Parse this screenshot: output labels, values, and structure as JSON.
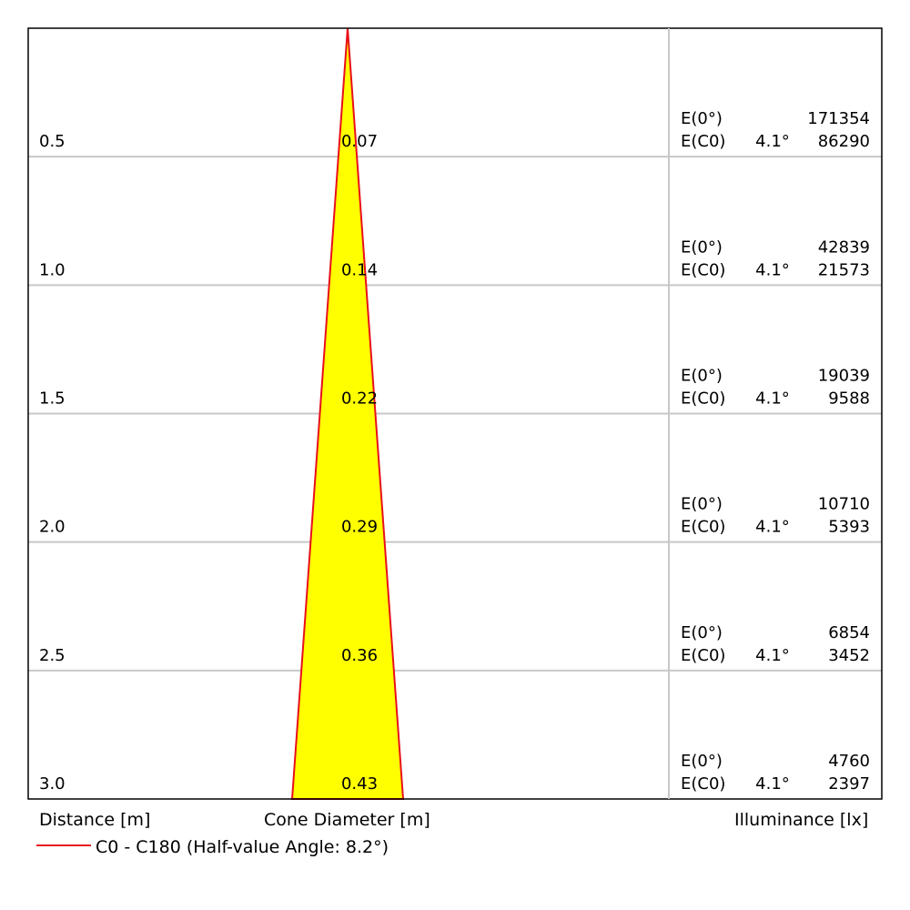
{
  "chart_data": {
    "type": "cone-diagram",
    "xlabel_distance": "Distance [m]",
    "xlabel_cone": "Cone Diameter [m]",
    "xlabel_illuminance": "Illuminance [lx]",
    "legend": "C0 - C180 (Half-value Angle: 8.2°)",
    "half_angle_label": "4.1°",
    "e0_label": "E(0°)",
    "ec0_label": "E(C0)",
    "colors": {
      "cone_fill": "#ffff00",
      "cone_edge": "#e8101a",
      "grid": "#c8c8c8",
      "frame": "#000000"
    },
    "rows": [
      {
        "distance": "0.5",
        "cone_diameter": "0.07",
        "e0": "171354",
        "ec0": "86290"
      },
      {
        "distance": "1.0",
        "cone_diameter": "0.14",
        "e0": "42839",
        "ec0": "21573"
      },
      {
        "distance": "1.5",
        "cone_diameter": "0.22",
        "e0": "19039",
        "ec0": "9588"
      },
      {
        "distance": "2.0",
        "cone_diameter": "0.29",
        "e0": "10710",
        "ec0": "5393"
      },
      {
        "distance": "2.5",
        "cone_diameter": "0.36",
        "e0": "6854",
        "ec0": "3452"
      },
      {
        "distance": "3.0",
        "cone_diameter": "0.43",
        "e0": "4760",
        "ec0": "2397"
      }
    ]
  }
}
